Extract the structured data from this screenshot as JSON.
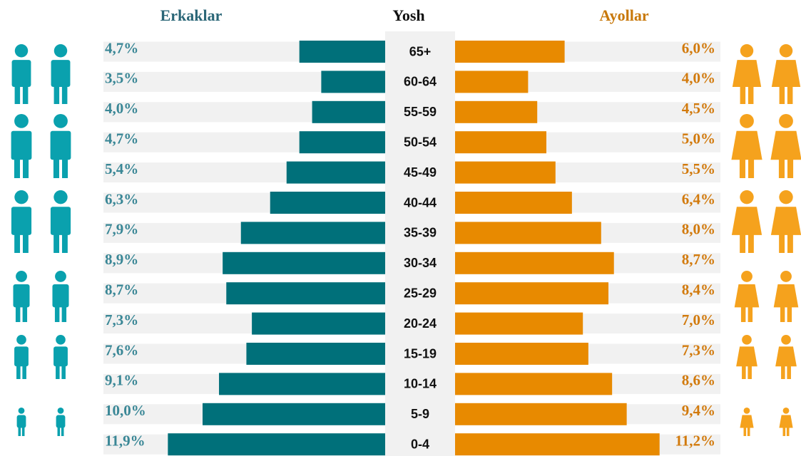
{
  "chart_data": {
    "type": "bar",
    "ylabel": "Yosh",
    "categories": [
      "65+",
      "60-64",
      "55-59",
      "50-54",
      "45-49",
      "40-44",
      "35-39",
      "30-34",
      "25-29",
      "20-24",
      "15-19",
      "10-14",
      "5-9",
      "0-4"
    ],
    "series": [
      {
        "name": "Erkaklar",
        "color": "#00707a",
        "label_color": "#3a8796",
        "values": [
          4.7,
          3.5,
          4.0,
          4.7,
          5.4,
          6.3,
          7.9,
          8.9,
          8.7,
          7.3,
          7.6,
          9.1,
          10.0,
          11.9
        ],
        "value_labels": [
          "4,7%",
          "3,5%",
          "4,0%",
          "4,7%",
          "5,4%",
          "6,3%",
          "7,9%",
          "8,9%",
          "8,7%",
          "7,3%",
          "7,6%",
          "9,1%",
          "10,0%",
          "11,9%"
        ]
      },
      {
        "name": "Ayollar",
        "color": "#e88a00",
        "label_color": "#d27a0c",
        "values": [
          6.0,
          4.0,
          4.5,
          5.0,
          5.5,
          6.4,
          8.0,
          8.7,
          8.4,
          7.0,
          7.3,
          8.6,
          9.4,
          11.2
        ],
        "value_labels": [
          "6,0%",
          "4,0%",
          "4,5%",
          "5,0%",
          "5,5%",
          "6,4%",
          "8,0%",
          "8,7%",
          "8,4%",
          "7,0%",
          "7,3%",
          "8,6%",
          "9,4%",
          "11,2%"
        ]
      }
    ]
  }
}
